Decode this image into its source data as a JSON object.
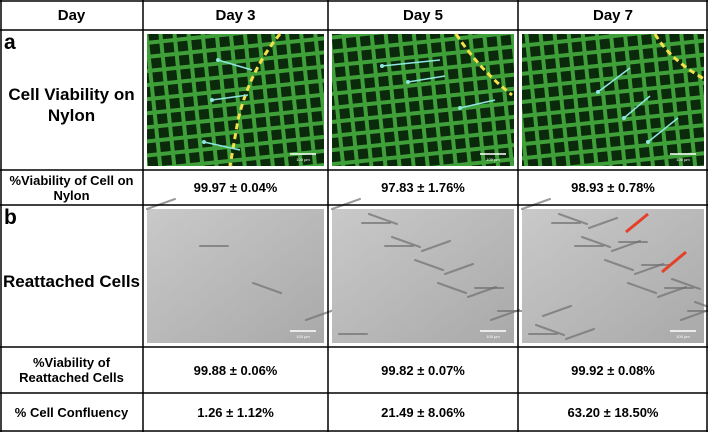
{
  "table": {
    "header": [
      "Day",
      "Day 3",
      "Day 5",
      "Day 7"
    ],
    "sections": [
      {
        "letter": "a",
        "image_label": "Cell Viability on Nylon",
        "stat_rows": [
          {
            "label": "%Viability of Cell on Nylon",
            "values": [
              "99.97 ± 0.04%",
              "97.83 ± 1.76%",
              "98.93 ± 0.78%"
            ]
          }
        ]
      },
      {
        "letter": "b",
        "image_label": "Reattached Cells",
        "stat_rows": [
          {
            "label": "%Viability of Reattached Cells",
            "values": [
              "99.88 ± 0.06%",
              "99.82 ± 0.07%",
              "99.92 ± 0.08%"
            ]
          },
          {
            "label": "% Cell Confluency",
            "values": [
              "1.26 ± 1.12%",
              "21.49 ± 8.06%",
              "63.20 ± 18.50%"
            ]
          }
        ]
      }
    ],
    "scale_bar_label": "100 µm"
  }
}
